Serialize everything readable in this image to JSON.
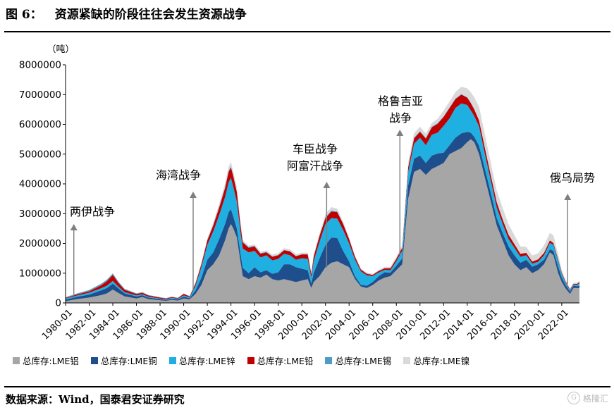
{
  "header": {
    "figure_number": "图 6：",
    "title": "资源紧缺的阶段往往会发生资源战争"
  },
  "footer": {
    "source": "数据来源：Wind，国泰君安证券研究",
    "watermark": "格隆汇"
  },
  "chart_data": {
    "type": "area",
    "stacked": true,
    "title": "资源紧缺的阶段往往会发生资源战争",
    "ylabel": "（吨）",
    "ylim": [
      0,
      8000000
    ],
    "y_ticks": [
      "0",
      "1000000",
      "2000000",
      "3000000",
      "4000000",
      "5000000",
      "6000000",
      "7000000",
      "8000000"
    ],
    "xlim": [
      "1980-01",
      "2023-07"
    ],
    "x_ticks": [
      "1980-01",
      "1982-01",
      "1984-01",
      "1986-01",
      "1988-01",
      "1990-01",
      "1992-01",
      "1994-01",
      "1996-01",
      "1998-01",
      "2000-01",
      "2002-01",
      "2004-01",
      "2006-01",
      "2008-01",
      "2010-01",
      "2012-01",
      "2014-01",
      "2016-01",
      "2018-01",
      "2020-01",
      "2022-01"
    ],
    "grid": false,
    "legend_position": "bottom",
    "x": [
      1980.0,
      1981.0,
      1982.0,
      1983.0,
      1983.5,
      1984.0,
      1984.5,
      1985.0,
      1986.0,
      1986.5,
      1987.0,
      1988.0,
      1988.5,
      1989.0,
      1989.5,
      1990.0,
      1990.5,
      1991.0,
      1991.5,
      1992.0,
      1992.5,
      1993.0,
      1993.5,
      1993.8,
      1994.0,
      1994.2,
      1994.5,
      1994.8,
      1995.0,
      1995.5,
      1996.0,
      1996.5,
      1997.0,
      1997.5,
      1998.0,
      1998.5,
      1999.0,
      1999.5,
      2000.0,
      2000.5,
      2000.8,
      2001.0,
      2001.5,
      2002.0,
      2002.5,
      2003.0,
      2003.5,
      2004.0,
      2004.5,
      2005.0,
      2005.5,
      2006.0,
      2006.5,
      2007.0,
      2007.5,
      2008.0,
      2008.5,
      2009.0,
      2009.5,
      2010.0,
      2010.5,
      2011.0,
      2011.5,
      2012.0,
      2012.5,
      2013.0,
      2013.5,
      2014.0,
      2014.3,
      2014.6,
      2015.0,
      2015.5,
      2016.0,
      2016.5,
      2017.0,
      2017.5,
      2018.0,
      2018.5,
      2019.0,
      2019.5,
      2020.0,
      2020.5,
      2021.0,
      2021.3,
      2021.7,
      2022.0,
      2022.3,
      2022.7,
      2023.0,
      2023.3,
      2023.5
    ],
    "series": [
      {
        "name": "总库存:LME铝",
        "color": "#a6a6a6",
        "values": [
          60000,
          130000,
          180000,
          260000,
          320000,
          450000,
          330000,
          220000,
          150000,
          200000,
          130000,
          90000,
          70000,
          100000,
          80000,
          150000,
          120000,
          300000,
          600000,
          1100000,
          1300000,
          1600000,
          2100000,
          2500000,
          2650000,
          2500000,
          2200000,
          1400000,
          900000,
          800000,
          900000,
          850000,
          950000,
          800000,
          750000,
          800000,
          750000,
          700000,
          750000,
          800000,
          500000,
          700000,
          900000,
          1200000,
          1350000,
          1400000,
          1300000,
          1200000,
          800000,
          550000,
          500000,
          600000,
          750000,
          850000,
          900000,
          1100000,
          1300000,
          3500000,
          4400000,
          4500000,
          4300000,
          4500000,
          4600000,
          4700000,
          5000000,
          5100000,
          5200000,
          5400000,
          5500000,
          5400000,
          5000000,
          4200000,
          3400000,
          2600000,
          2100000,
          1600000,
          1300000,
          1100000,
          1200000,
          1000000,
          1100000,
          1300000,
          1700000,
          1600000,
          1000000,
          700000,
          500000,
          300000,
          500000,
          500000,
          500000
        ]
      },
      {
        "name": "总库存:LME铜",
        "color": "#1f4e8c",
        "values": [
          50000,
          80000,
          100000,
          160000,
          180000,
          200000,
          150000,
          100000,
          70000,
          60000,
          50000,
          40000,
          30000,
          40000,
          40000,
          60000,
          40000,
          120000,
          250000,
          350000,
          400000,
          550000,
          550000,
          550000,
          500000,
          400000,
          300000,
          300000,
          280000,
          200000,
          300000,
          180000,
          150000,
          180000,
          280000,
          500000,
          550000,
          500000,
          400000,
          300000,
          150000,
          300000,
          600000,
          750000,
          850000,
          780000,
          450000,
          200000,
          100000,
          60000,
          80000,
          100000,
          150000,
          180000,
          120000,
          150000,
          200000,
          450000,
          450000,
          450000,
          400000,
          450000,
          420000,
          350000,
          300000,
          450000,
          500000,
          350000,
          220000,
          180000,
          280000,
          300000,
          300000,
          250000,
          250000,
          300000,
          300000,
          250000,
          250000,
          220000,
          200000,
          150000,
          100000,
          150000,
          220000,
          150000,
          120000,
          80000,
          80000,
          60000,
          80000
        ]
      },
      {
        "name": "总库存:LME锌",
        "color": "#1fafe0",
        "values": [
          40000,
          40000,
          60000,
          70000,
          80000,
          90000,
          60000,
          40000,
          30000,
          30000,
          30000,
          20000,
          20000,
          30000,
          20000,
          40000,
          30000,
          150000,
          350000,
          500000,
          700000,
          800000,
          900000,
          1000000,
          1050000,
          1000000,
          900000,
          700000,
          650000,
          700000,
          550000,
          500000,
          500000,
          450000,
          450000,
          350000,
          300000,
          250000,
          350000,
          380000,
          200000,
          400000,
          550000,
          700000,
          650000,
          650000,
          700000,
          600000,
          550000,
          450000,
          350000,
          200000,
          120000,
          80000,
          80000,
          150000,
          250000,
          450000,
          500000,
          600000,
          600000,
          700000,
          700000,
          900000,
          900000,
          1000000,
          1000000,
          900000,
          750000,
          700000,
          650000,
          500000,
          400000,
          350000,
          300000,
          250000,
          250000,
          200000,
          150000,
          100000,
          80000,
          150000,
          220000,
          200000,
          200000,
          130000,
          80000,
          40000,
          30000,
          50000,
          80000
        ]
      },
      {
        "name": "总库存:LME铅",
        "color": "#c00000",
        "values": [
          20000,
          40000,
          50000,
          100000,
          150000,
          200000,
          120000,
          80000,
          50000,
          50000,
          40000,
          30000,
          30000,
          30000,
          20000,
          50000,
          30000,
          80000,
          100000,
          150000,
          200000,
          250000,
          300000,
          350000,
          350000,
          350000,
          320000,
          250000,
          200000,
          150000,
          150000,
          120000,
          100000,
          120000,
          120000,
          120000,
          130000,
          120000,
          130000,
          150000,
          120000,
          150000,
          200000,
          200000,
          220000,
          220000,
          200000,
          150000,
          100000,
          60000,
          50000,
          40000,
          50000,
          50000,
          60000,
          80000,
          100000,
          150000,
          180000,
          200000,
          220000,
          250000,
          300000,
          300000,
          350000,
          300000,
          300000,
          250000,
          250000,
          220000,
          200000,
          200000,
          180000,
          180000,
          150000,
          140000,
          120000,
          100000,
          80000,
          70000,
          80000,
          80000,
          80000,
          60000,
          50000,
          40000,
          40000,
          30000,
          30000,
          30000,
          40000
        ]
      },
      {
        "name": "总库存:LME锡",
        "color": "#4f9cc6",
        "values": [
          20000,
          30000,
          40000,
          50000,
          50000,
          50000,
          40000,
          30000,
          20000,
          20000,
          15000,
          10000,
          10000,
          10000,
          10000,
          15000,
          10000,
          20000,
          25000,
          25000,
          30000,
          30000,
          35000,
          35000,
          35000,
          30000,
          30000,
          30000,
          25000,
          25000,
          20000,
          20000,
          15000,
          15000,
          12000,
          12000,
          12000,
          12000,
          10000,
          10000,
          10000,
          20000,
          30000,
          30000,
          30000,
          20000,
          15000,
          10000,
          10000,
          10000,
          10000,
          10000,
          10000,
          10000,
          10000,
          10000,
          10000,
          20000,
          20000,
          20000,
          20000,
          20000,
          20000,
          15000,
          15000,
          15000,
          15000,
          10000,
          10000,
          10000,
          10000,
          10000,
          10000,
          10000,
          10000,
          5000,
          5000,
          5000,
          5000,
          5000,
          5000,
          5000,
          5000,
          5000,
          5000,
          5000,
          5000,
          5000,
          5000,
          5000,
          5000
        ]
      },
      {
        "name": "总库存:LME镍",
        "color": "#d9d9d9",
        "values": [
          10000,
          10000,
          10000,
          10000,
          10000,
          10000,
          10000,
          10000,
          10000,
          10000,
          10000,
          5000,
          5000,
          5000,
          5000,
          10000,
          10000,
          20000,
          30000,
          40000,
          70000,
          100000,
          130000,
          150000,
          150000,
          140000,
          120000,
          80000,
          60000,
          50000,
          50000,
          50000,
          50000,
          60000,
          60000,
          60000,
          60000,
          60000,
          50000,
          50000,
          40000,
          50000,
          60000,
          100000,
          120000,
          100000,
          60000,
          40000,
          30000,
          30000,
          30000,
          30000,
          30000,
          40000,
          50000,
          60000,
          80000,
          150000,
          150000,
          150000,
          150000,
          120000,
          150000,
          200000,
          200000,
          220000,
          250000,
          300000,
          350000,
          400000,
          450000,
          450000,
          400000,
          380000,
          380000,
          350000,
          300000,
          250000,
          200000,
          200000,
          200000,
          250000,
          250000,
          250000,
          150000,
          80000,
          60000,
          50000,
          40000,
          40000,
          40000
        ]
      }
    ],
    "annotations": [
      {
        "lines": [
          "两伊战争"
        ],
        "x": 1980.7
      },
      {
        "lines": [
          "海湾战争"
        ],
        "x": 1990.8
      },
      {
        "lines": [
          "车臣战争",
          "阿富汗战争"
        ],
        "x": 2002.1
      },
      {
        "lines": [
          "格鲁吉亚",
          "战争"
        ],
        "x": 2008.3
      },
      {
        "lines": [
          "俄乌局势"
        ],
        "x": 2022.5
      }
    ]
  }
}
